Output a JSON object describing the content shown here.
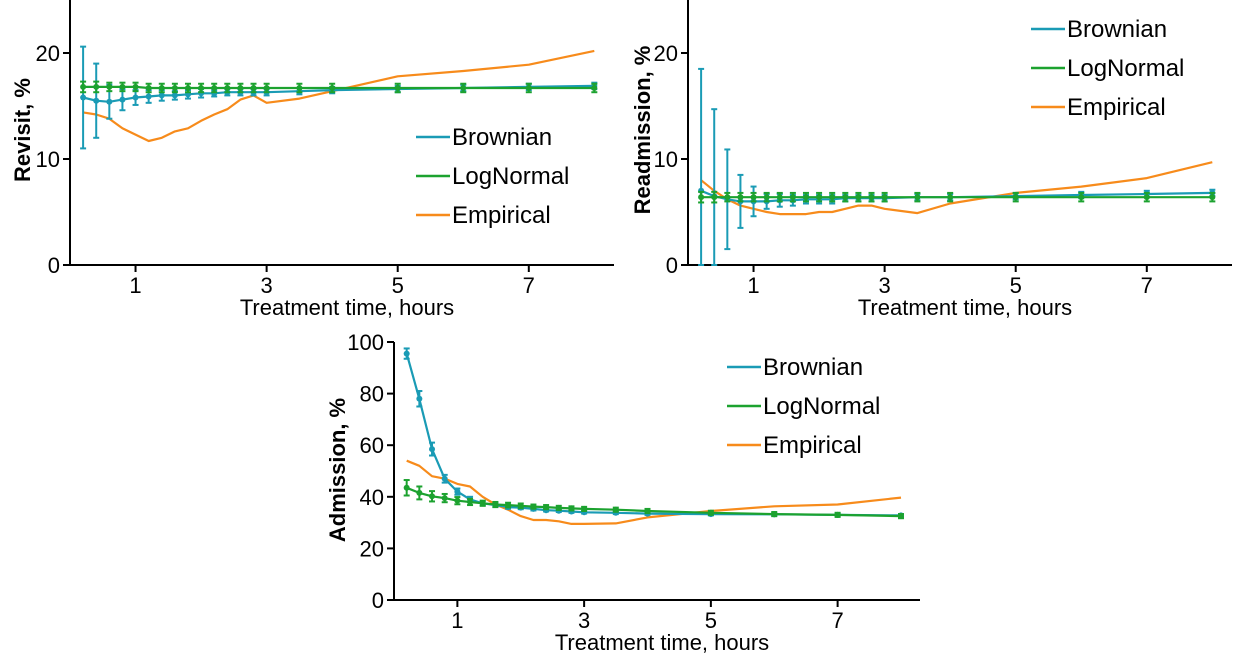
{
  "colors": {
    "Brownian": "#1a9bb5",
    "LogNormal": "#1ca22f",
    "Empirical": "#f78b1b",
    "axis": "#000000"
  },
  "chart_data": [
    {
      "id": "revisit",
      "type": "line",
      "xlabel": "Treatment time, hours",
      "ylabel": "Revisit, %",
      "xlim": [
        0,
        8.3
      ],
      "ylim": [
        0,
        25
      ],
      "xticks": [
        1,
        3,
        5,
        7
      ],
      "yticks": [
        0,
        10,
        20
      ],
      "legend": "lower-right",
      "series": [
        {
          "name": "Brownian",
          "errorbars": true,
          "x": [
            0.2,
            0.4,
            0.6,
            0.8,
            1.0,
            1.2,
            1.4,
            1.6,
            1.8,
            2.0,
            2.2,
            2.4,
            2.6,
            2.8,
            3.0,
            3.5,
            4.0,
            5.0,
            6.0,
            7.0,
            8.0
          ],
          "y": [
            15.8,
            15.5,
            15.4,
            15.6,
            15.8,
            15.9,
            16.0,
            16.0,
            16.1,
            16.2,
            16.2,
            16.3,
            16.3,
            16.3,
            16.3,
            16.4,
            16.5,
            16.6,
            16.7,
            16.8,
            16.9
          ],
          "err": [
            4.8,
            3.5,
            1.6,
            1.0,
            0.7,
            0.6,
            0.5,
            0.4,
            0.4,
            0.4,
            0.3,
            0.3,
            0.3,
            0.3,
            0.3,
            0.3,
            0.3,
            0.3,
            0.3,
            0.3,
            0.3
          ]
        },
        {
          "name": "LogNormal",
          "errorbars": true,
          "x": [
            0.2,
            0.4,
            0.6,
            0.8,
            1.0,
            1.2,
            1.4,
            1.6,
            1.8,
            2.0,
            2.2,
            2.4,
            2.6,
            2.8,
            3.0,
            3.5,
            4.0,
            5.0,
            6.0,
            7.0,
            8.0
          ],
          "y": [
            16.8,
            16.8,
            16.8,
            16.8,
            16.8,
            16.7,
            16.7,
            16.7,
            16.7,
            16.7,
            16.7,
            16.7,
            16.7,
            16.7,
            16.7,
            16.7,
            16.7,
            16.7,
            16.7,
            16.7,
            16.7
          ],
          "err": [
            0.5,
            0.5,
            0.4,
            0.4,
            0.4,
            0.4,
            0.4,
            0.4,
            0.4,
            0.4,
            0.4,
            0.4,
            0.4,
            0.4,
            0.4,
            0.4,
            0.4,
            0.4,
            0.4,
            0.4,
            0.4
          ]
        },
        {
          "name": "Empirical",
          "errorbars": false,
          "x": [
            0.2,
            0.4,
            0.6,
            0.8,
            1.0,
            1.2,
            1.4,
            1.6,
            1.8,
            2.0,
            2.2,
            2.4,
            2.6,
            2.8,
            3.0,
            3.5,
            4.0,
            5.0,
            6.0,
            7.0,
            8.0
          ],
          "y": [
            14.4,
            14.2,
            13.8,
            12.9,
            12.3,
            11.7,
            12.0,
            12.6,
            12.9,
            13.6,
            14.2,
            14.7,
            15.6,
            16.0,
            15.3,
            15.7,
            16.4,
            17.8,
            18.3,
            18.9,
            20.2
          ]
        }
      ]
    },
    {
      "id": "readmission",
      "type": "line",
      "xlabel": "Treatment time, hours",
      "ylabel": "Readmission, %",
      "xlim": [
        0,
        8.3
      ],
      "ylim": [
        0,
        25
      ],
      "xticks": [
        1,
        3,
        5,
        7
      ],
      "yticks": [
        0,
        10,
        20
      ],
      "legend": "top-right",
      "series": [
        {
          "name": "Brownian",
          "errorbars": true,
          "x": [
            0.2,
            0.4,
            0.6,
            0.8,
            1.0,
            1.2,
            1.4,
            1.6,
            1.8,
            2.0,
            2.2,
            2.4,
            2.6,
            2.8,
            3.0,
            3.5,
            4.0,
            5.0,
            6.0,
            7.0,
            8.0
          ],
          "y": [
            7.0,
            6.5,
            6.2,
            6.0,
            6.0,
            6.0,
            6.1,
            6.1,
            6.2,
            6.2,
            6.2,
            6.3,
            6.3,
            6.3,
            6.3,
            6.4,
            6.4,
            6.5,
            6.6,
            6.7,
            6.8
          ],
          "err": [
            11.5,
            8.2,
            4.7,
            2.5,
            1.4,
            0.7,
            0.6,
            0.5,
            0.4,
            0.4,
            0.4,
            0.3,
            0.3,
            0.3,
            0.3,
            0.3,
            0.3,
            0.3,
            0.3,
            0.3,
            0.3
          ]
        },
        {
          "name": "LogNormal",
          "errorbars": true,
          "x": [
            0.2,
            0.4,
            0.6,
            0.8,
            1.0,
            1.2,
            1.4,
            1.6,
            1.8,
            2.0,
            2.2,
            2.4,
            2.6,
            2.8,
            3.0,
            3.5,
            4.0,
            5.0,
            6.0,
            7.0,
            8.0
          ],
          "y": [
            6.4,
            6.4,
            6.4,
            6.4,
            6.4,
            6.4,
            6.4,
            6.4,
            6.4,
            6.4,
            6.4,
            6.4,
            6.4,
            6.4,
            6.4,
            6.4,
            6.4,
            6.4,
            6.4,
            6.4,
            6.4
          ],
          "err": [
            0.5,
            0.5,
            0.4,
            0.4,
            0.4,
            0.4,
            0.4,
            0.4,
            0.4,
            0.4,
            0.4,
            0.4,
            0.4,
            0.4,
            0.4,
            0.4,
            0.4,
            0.4,
            0.4,
            0.4,
            0.4
          ]
        },
        {
          "name": "Empirical",
          "errorbars": false,
          "x": [
            0.2,
            0.4,
            0.6,
            0.8,
            1.0,
            1.2,
            1.4,
            1.6,
            1.8,
            2.0,
            2.2,
            2.4,
            2.6,
            2.8,
            3.0,
            3.5,
            4.0,
            5.0,
            6.0,
            7.0,
            8.0
          ],
          "y": [
            8.0,
            7.0,
            6.2,
            5.6,
            5.3,
            5.0,
            4.8,
            4.8,
            4.8,
            5.0,
            5.0,
            5.3,
            5.6,
            5.6,
            5.3,
            4.9,
            5.8,
            6.8,
            7.4,
            8.2,
            9.7
          ]
        }
      ]
    },
    {
      "id": "admission",
      "type": "line",
      "xlabel": "Treatment time, hours",
      "ylabel": "Admission, %",
      "xlim": [
        0,
        8.3
      ],
      "ylim": [
        0,
        100
      ],
      "xticks": [
        1,
        3,
        5,
        7
      ],
      "yticks": [
        0,
        20,
        40,
        60,
        80,
        100
      ],
      "legend": "top-right",
      "series": [
        {
          "name": "Brownian",
          "errorbars": true,
          "x": [
            0.2,
            0.4,
            0.6,
            0.8,
            1.0,
            1.2,
            1.4,
            1.6,
            1.8,
            2.0,
            2.2,
            2.4,
            2.6,
            2.8,
            3.0,
            3.5,
            4.0,
            5.0,
            6.0,
            7.0,
            8.0
          ],
          "y": [
            95.5,
            78.0,
            58.5,
            47.0,
            42.0,
            39.0,
            37.5,
            36.8,
            36.0,
            35.8,
            35.3,
            34.8,
            34.6,
            34.3,
            34.0,
            33.8,
            33.5,
            33.3,
            33.2,
            33.0,
            32.8
          ],
          "err": [
            2.0,
            3.0,
            2.5,
            1.5,
            1.2,
            1.0,
            0.8,
            0.7,
            0.6,
            0.6,
            0.6,
            0.5,
            0.5,
            0.5,
            0.5,
            0.5,
            0.5,
            0.5,
            0.5,
            0.5,
            0.5
          ]
        },
        {
          "name": "LogNormal",
          "errorbars": true,
          "x": [
            0.2,
            0.4,
            0.6,
            0.8,
            1.0,
            1.2,
            1.4,
            1.6,
            1.8,
            2.0,
            2.2,
            2.4,
            2.6,
            2.8,
            3.0,
            3.5,
            4.0,
            5.0,
            6.0,
            7.0,
            8.0
          ],
          "y": [
            43.5,
            41.5,
            40.2,
            39.5,
            38.5,
            38.0,
            37.5,
            37.0,
            36.8,
            36.5,
            36.2,
            36.0,
            35.7,
            35.5,
            35.3,
            35.0,
            34.5,
            33.8,
            33.3,
            33.0,
            32.5
          ],
          "err": [
            3.0,
            2.5,
            2.0,
            1.6,
            1.4,
            1.2,
            1.0,
            1.0,
            0.9,
            0.9,
            0.8,
            0.8,
            0.8,
            0.8,
            0.8,
            0.8,
            0.8,
            0.8,
            0.8,
            0.8,
            0.8
          ]
        },
        {
          "name": "Empirical",
          "errorbars": false,
          "x": [
            0.2,
            0.4,
            0.6,
            0.8,
            1.0,
            1.2,
            1.4,
            1.6,
            1.8,
            2.0,
            2.2,
            2.4,
            2.6,
            2.8,
            3.0,
            3.5,
            4.0,
            5.0,
            6.0,
            7.0,
            8.0
          ],
          "y": [
            54.0,
            52.0,
            48.0,
            47.0,
            45.0,
            44.0,
            40.0,
            37.0,
            35.0,
            32.5,
            31.0,
            31.0,
            30.5,
            29.5,
            29.5,
            29.7,
            32.0,
            34.5,
            36.3,
            37.0,
            39.7
          ]
        }
      ]
    }
  ]
}
